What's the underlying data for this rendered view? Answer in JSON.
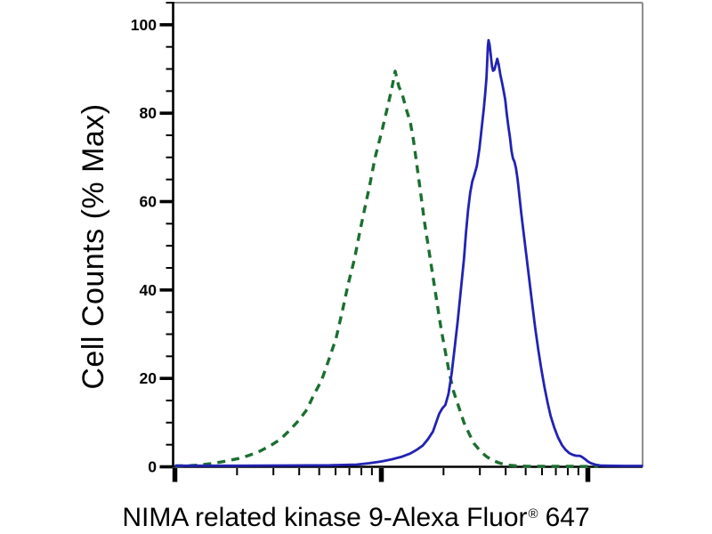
{
  "chart_data": {
    "type": "line",
    "title": "",
    "xlabel": "NIMA related kinase 9-Alexa Fluor® 647",
    "xlabel_parts": [
      "NIMA related kinase 9-Alexa Fluor",
      "®",
      "647"
    ],
    "ylabel": "Cell Counts (% Max)",
    "x_scale": "log",
    "x_decades_shown": 2.27,
    "x_major_tick_positions_decades": [
      0,
      1,
      2
    ],
    "x_tick_labels": [],
    "ylim": [
      0,
      105
    ],
    "yticks": [
      100,
      80,
      60,
      40,
      20,
      0
    ],
    "y_minor_tick_step": 5,
    "grid": "off",
    "legend": "none",
    "colors": {
      "axis": "#000000",
      "border": "#8c8c8c",
      "background": "#ffffff",
      "green_dashed": "#1b6f30",
      "blue_solid": "#2222b4"
    },
    "series": [
      {
        "name": "green-dashed",
        "style": "dashed",
        "color": "#1b6f30",
        "peak": {
          "x_decades": 1.07,
          "pct_max": 89.5
        },
        "points": [
          [
            0.0,
            0.2
          ],
          [
            0.06,
            0.25
          ],
          [
            0.12,
            0.4
          ],
          [
            0.19,
            0.8
          ],
          [
            0.25,
            1.3
          ],
          [
            0.31,
            1.9
          ],
          [
            0.36,
            2.6
          ],
          [
            0.41,
            3.5
          ],
          [
            0.46,
            4.7
          ],
          [
            0.51,
            6.2
          ],
          [
            0.55,
            8
          ],
          [
            0.6,
            10.5
          ],
          [
            0.64,
            13
          ],
          [
            0.67,
            16
          ],
          [
            0.71,
            19.5
          ],
          [
            0.74,
            23.5
          ],
          [
            0.78,
            29
          ],
          [
            0.81,
            35
          ],
          [
            0.84,
            41.5
          ],
          [
            0.87,
            47
          ],
          [
            0.895,
            53
          ],
          [
            0.92,
            58.5
          ],
          [
            0.945,
            64
          ],
          [
            0.97,
            70
          ],
          [
            1.0,
            75.5
          ],
          [
            1.028,
            81
          ],
          [
            1.05,
            85.5
          ],
          [
            1.067,
            89.5
          ],
          [
            1.085,
            86
          ],
          [
            1.1,
            84.5
          ],
          [
            1.12,
            81
          ],
          [
            1.14,
            78
          ],
          [
            1.155,
            74
          ],
          [
            1.17,
            69
          ],
          [
            1.19,
            62
          ],
          [
            1.21,
            55
          ],
          [
            1.23,
            49
          ],
          [
            1.25,
            43
          ],
          [
            1.27,
            37
          ],
          [
            1.29,
            31
          ],
          [
            1.31,
            26
          ],
          [
            1.33,
            21
          ],
          [
            1.35,
            17
          ],
          [
            1.375,
            13.5
          ],
          [
            1.4,
            10
          ],
          [
            1.425,
            7.5
          ],
          [
            1.45,
            5.2
          ],
          [
            1.48,
            3.5
          ],
          [
            1.51,
            2.3
          ],
          [
            1.54,
            1.4
          ],
          [
            1.575,
            0.8
          ],
          [
            1.61,
            0.4
          ],
          [
            1.655,
            0.2
          ],
          [
            1.71,
            0.12
          ],
          [
            1.8,
            0.1
          ],
          [
            1.92,
            0.1
          ],
          [
            2.05,
            0.08
          ]
        ]
      },
      {
        "name": "blue-solid",
        "style": "solid",
        "color": "#2222b4",
        "peak": {
          "x_decades": 1.52,
          "pct_max": 96.5
        },
        "points": [
          [
            0.0,
            0.25
          ],
          [
            0.3,
            0.25
          ],
          [
            0.55,
            0.3
          ],
          [
            0.75,
            0.35
          ],
          [
            0.88,
            0.5
          ],
          [
            0.94,
            0.8
          ],
          [
            1.0,
            1.2
          ],
          [
            1.05,
            1.7
          ],
          [
            1.1,
            2.3
          ],
          [
            1.14,
            3.0
          ],
          [
            1.17,
            3.8
          ],
          [
            1.2,
            4.8
          ],
          [
            1.225,
            6.2
          ],
          [
            1.25,
            8.0
          ],
          [
            1.265,
            10.0
          ],
          [
            1.28,
            12.0
          ],
          [
            1.295,
            13.2
          ],
          [
            1.31,
            14.0
          ],
          [
            1.325,
            16.5
          ],
          [
            1.34,
            21
          ],
          [
            1.355,
            27
          ],
          [
            1.37,
            33
          ],
          [
            1.385,
            40
          ],
          [
            1.4,
            47
          ],
          [
            1.41,
            53
          ],
          [
            1.42,
            58
          ],
          [
            1.43,
            62
          ],
          [
            1.44,
            64.5
          ],
          [
            1.45,
            66
          ],
          [
            1.462,
            68
          ],
          [
            1.475,
            72
          ],
          [
            1.483,
            75.5
          ],
          [
            1.49,
            78.5
          ],
          [
            1.496,
            81
          ],
          [
            1.503,
            84.5
          ],
          [
            1.509,
            88
          ],
          [
            1.513,
            92
          ],
          [
            1.5155,
            95
          ],
          [
            1.519,
            96.5
          ],
          [
            1.524,
            95.5
          ],
          [
            1.53,
            93
          ],
          [
            1.536,
            90.5
          ],
          [
            1.541,
            89.6
          ],
          [
            1.547,
            89.8
          ],
          [
            1.5545,
            91
          ],
          [
            1.561,
            92.3
          ],
          [
            1.568,
            91
          ],
          [
            1.576,
            88.8
          ],
          [
            1.585,
            86.8
          ],
          [
            1.593,
            84.8
          ],
          [
            1.6,
            83
          ],
          [
            1.607,
            80
          ],
          [
            1.615,
            77
          ],
          [
            1.623,
            74.5
          ],
          [
            1.63,
            71.5
          ],
          [
            1.637,
            69.8
          ],
          [
            1.645,
            69
          ],
          [
            1.652,
            67.5
          ],
          [
            1.66,
            65
          ],
          [
            1.668,
            61.5
          ],
          [
            1.677,
            57.5
          ],
          [
            1.69,
            52.5
          ],
          [
            1.703,
            47.5
          ],
          [
            1.716,
            42.5
          ],
          [
            1.73,
            37
          ],
          [
            1.745,
            31.5
          ],
          [
            1.76,
            26.5
          ],
          [
            1.775,
            22
          ],
          [
            1.79,
            18
          ],
          [
            1.805,
            14.5
          ],
          [
            1.82,
            11.5
          ],
          [
            1.838,
            8.8
          ],
          [
            1.856,
            6.6
          ],
          [
            1.875,
            4.9
          ],
          [
            1.893,
            3.8
          ],
          [
            1.91,
            3.1
          ],
          [
            1.928,
            2.7
          ],
          [
            1.945,
            2.5
          ],
          [
            1.958,
            2.5
          ],
          [
            1.97,
            2.3
          ],
          [
            1.985,
            1.8
          ],
          [
            2.0,
            1.2
          ],
          [
            2.015,
            0.8
          ],
          [
            2.035,
            0.5
          ],
          [
            2.06,
            0.3
          ],
          [
            2.1,
            0.25
          ],
          [
            2.18,
            0.2
          ],
          [
            2.267,
            0.2
          ]
        ]
      }
    ]
  }
}
